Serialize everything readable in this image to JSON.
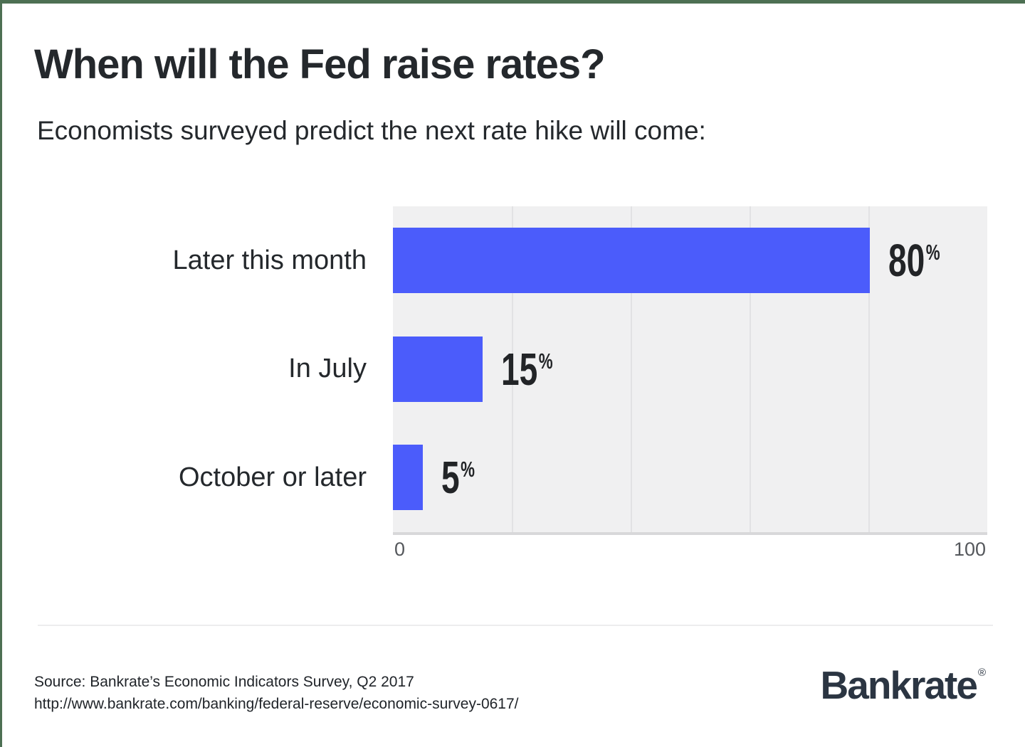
{
  "page": {
    "title": "When will the Fed raise rates?",
    "subtitle": "Economists surveyed predict the next rate hike will come:",
    "source_line1": "Source: Bankrate’s Economic Indicators Survey, Q2 2017",
    "source_line2": "http://www.bankrate.com/banking/federal-reserve/economic-survey-0617/",
    "logo_text": "Bankrate",
    "logo_mark": "®"
  },
  "colors": {
    "accent_border": "#4d7053",
    "bar": "#4b5cfb",
    "plot_bg": "#f0f0f1",
    "gridline": "#e2e2e4",
    "axis_line": "#d8d8da",
    "text": "#24282c",
    "muted": "#55585c",
    "logo": "#2b3542"
  },
  "chart_data": {
    "type": "bar",
    "orientation": "horizontal",
    "title": "When will the Fed raise rates?",
    "subtitle": "Economists surveyed predict the next rate hike will come:",
    "categories": [
      "Later this month",
      "In July",
      "October or later"
    ],
    "values": [
      80,
      15,
      5
    ],
    "value_suffix": "%",
    "xlim": [
      0,
      100
    ],
    "x_tick_labels": [
      "0",
      "100"
    ],
    "gridlines": [
      20,
      40,
      60,
      80
    ],
    "grid": true,
    "legend": false
  }
}
